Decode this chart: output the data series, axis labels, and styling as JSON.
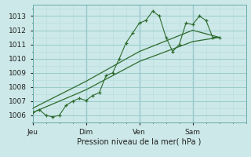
{
  "background_color": "#cce8e8",
  "grid_major_color": "#99cccc",
  "grid_minor_color": "#b8dddd",
  "line_color": "#2d6b2d",
  "marker_color": "#2d6b2d",
  "xlabel": "Pression niveau de la mer( hPa )",
  "ylim": [
    1005.5,
    1013.8
  ],
  "yticks": [
    1006,
    1007,
    1008,
    1009,
    1010,
    1011,
    1012,
    1013
  ],
  "day_labels": [
    "Jeu",
    "Dim",
    "Ven",
    "Sam"
  ],
  "day_positions": [
    0,
    4,
    8,
    12
  ],
  "vline_positions": [
    4,
    8,
    12
  ],
  "xlim": [
    0,
    16
  ],
  "series1_x": [
    0.0,
    0.5,
    1.0,
    1.5,
    2.0,
    2.5,
    3.0,
    3.5,
    4.0,
    4.5,
    5.0,
    5.5,
    6.0,
    6.5,
    7.0,
    7.5,
    8.0,
    8.5,
    9.0,
    9.5,
    10.0,
    10.5,
    11.0,
    11.5,
    12.0,
    12.5,
    13.0,
    13.5,
    14.0
  ],
  "series1_y": [
    1006.2,
    1006.4,
    1006.0,
    1005.9,
    1006.0,
    1006.7,
    1007.0,
    1007.2,
    1007.05,
    1007.4,
    1007.6,
    1008.8,
    1009.0,
    1010.0,
    1011.1,
    1011.8,
    1012.5,
    1012.7,
    1013.35,
    1013.0,
    1011.5,
    1010.5,
    1011.0,
    1012.5,
    1012.4,
    1013.0,
    1012.7,
    1011.5,
    1011.5
  ],
  "series2_x": [
    0,
    4,
    8,
    12,
    14
  ],
  "series2_y": [
    1006.2,
    1007.8,
    1009.8,
    1011.2,
    1011.5
  ],
  "series3_x": [
    0,
    4,
    8,
    12,
    14
  ],
  "series3_y": [
    1006.5,
    1008.4,
    1010.5,
    1012.0,
    1011.5
  ]
}
